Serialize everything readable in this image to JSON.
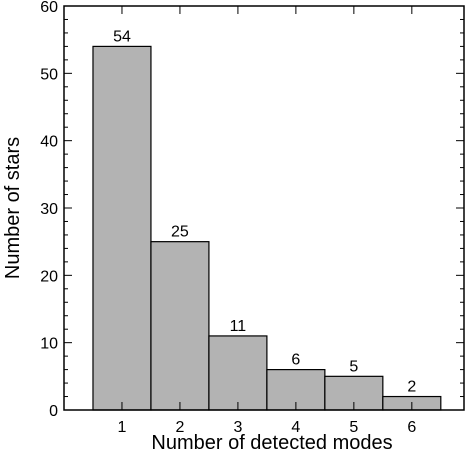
{
  "chart_data": {
    "type": "bar",
    "title": "",
    "xlabel": "Number of detected modes",
    "ylabel": "Number of stars",
    "categories": [
      "1",
      "2",
      "3",
      "4",
      "5",
      "6"
    ],
    "values": [
      54,
      25,
      11,
      6,
      5,
      2
    ],
    "data_labels": [
      "54",
      "25",
      "11",
      "6",
      "5",
      "2"
    ],
    "ylim": [
      0,
      60
    ],
    "y_ticks": [
      0,
      10,
      20,
      30,
      40,
      50,
      60
    ],
    "y_tick_labels": [
      "0",
      "10",
      "20",
      "30",
      "40",
      "50",
      "60"
    ],
    "grid": false,
    "legend": "none",
    "bar_color": "#b3b3b3",
    "edge_color": "#000000"
  }
}
